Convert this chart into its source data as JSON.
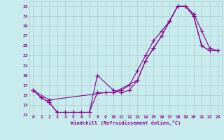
{
  "xlabel": "Windchill (Refroidissement éolien,°C)",
  "background_color": "#c8ecee",
  "grid_color": "#b0c8cc",
  "line_color": "#880088",
  "xlim": [
    -0.5,
    23.5
  ],
  "ylim": [
    11,
    34
  ],
  "xticks": [
    0,
    1,
    2,
    3,
    4,
    5,
    6,
    7,
    8,
    9,
    10,
    11,
    12,
    13,
    14,
    15,
    16,
    17,
    18,
    19,
    20,
    21,
    22,
    23
  ],
  "yticks": [
    11,
    13,
    15,
    17,
    19,
    21,
    23,
    25,
    27,
    29,
    31,
    33
  ],
  "line1_x": [
    0,
    1,
    2,
    3,
    4,
    5,
    6,
    7,
    8,
    9,
    10,
    11,
    12,
    13,
    14,
    15,
    16,
    17,
    18,
    19,
    20,
    21,
    22,
    23
  ],
  "line1_y": [
    16,
    14.5,
    13.5,
    11.5,
    11.5,
    11.5,
    11.5,
    11.5,
    15.5,
    15.5,
    15.5,
    16.0,
    17.0,
    20.0,
    23.0,
    26.0,
    28.0,
    30.0,
    33.0,
    33.0,
    31.5,
    28.0,
    24.5,
    24.0
  ],
  "line2_x": [
    0,
    1,
    2,
    3,
    4,
    5,
    6,
    7,
    8,
    10,
    11,
    12,
    13,
    14,
    15,
    16,
    17,
    18,
    19,
    20,
    21,
    22,
    23
  ],
  "line2_y": [
    16,
    14.5,
    13.5,
    11.5,
    11.5,
    11.5,
    11.5,
    11.5,
    19.0,
    16.0,
    15.5,
    16.0,
    18.0,
    22.0,
    24.5,
    27.0,
    30.0,
    33.0,
    33.0,
    31.0,
    25.0,
    24.0,
    24.0
  ],
  "line3_x": [
    0,
    2,
    9,
    10,
    13,
    14,
    15,
    16,
    17,
    18,
    19,
    20,
    21,
    22,
    23
  ],
  "line3_y": [
    16,
    14.0,
    15.5,
    15.5,
    18.0,
    22.0,
    24.5,
    27.0,
    30.0,
    33.0,
    33.0,
    31.0,
    25.0,
    24.0,
    24.0
  ]
}
